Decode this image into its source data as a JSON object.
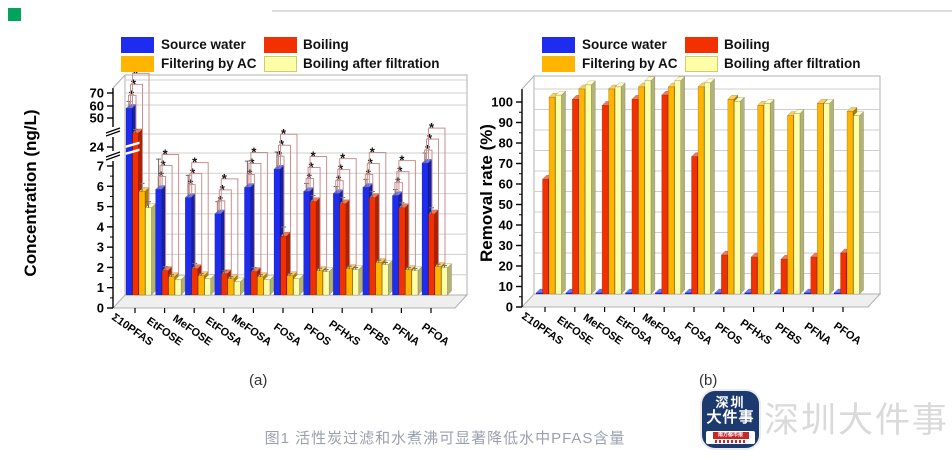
{
  "legend": {
    "items": [
      {
        "label": "Source water",
        "color": "#1e2cf0"
      },
      {
        "label": "Boiling",
        "color": "#f33000"
      },
      {
        "label": "Filtering by AC",
        "color": "#ffb400"
      },
      {
        "label": "Boiling after filtration",
        "color": "#ffffa8"
      }
    ]
  },
  "chart_data": [
    {
      "id": "a",
      "type": "bar",
      "ylabel": "Concentration (ng/L)",
      "categories": [
        "Σ10PFAS",
        "EtFOSE",
        "MeFOSE",
        "EtFOSA",
        "MeFOSA",
        "FOSA",
        "PFOS",
        "PFHxS",
        "PFBS",
        "PFNA",
        "PFOA"
      ],
      "series": [
        {
          "name": "Source water",
          "color": "#1e2cf0",
          "values": [
            47,
            5.2,
            4.8,
            4.0,
            5.3,
            6.2,
            5.1,
            5.0,
            5.3,
            4.9,
            6.5
          ],
          "errors": [
            6,
            1.5,
            1.1,
            0.6,
            1.3,
            1.7,
            0.4,
            0.35,
            0.4,
            0.3,
            0.5
          ]
        },
        {
          "name": "Boiling",
          "color": "#f33000",
          "values": [
            25,
            1.2,
            1.3,
            1.05,
            1.15,
            2.9,
            4.6,
            4.5,
            4.8,
            4.3,
            4.0
          ],
          "errors": [
            3,
            0.2,
            0.25,
            0.15,
            0.2,
            0.45,
            0.3,
            0.3,
            0.3,
            0.25,
            0.3
          ]
        },
        {
          "name": "Filtering by AC",
          "color": "#ffb400",
          "values": [
            5.1,
            0.9,
            0.95,
            0.8,
            0.9,
            0.95,
            1.2,
            1.3,
            1.6,
            1.25,
            1.4
          ],
          "errors": [
            0.4,
            0.1,
            0.1,
            0.1,
            0.1,
            0.1,
            0.12,
            0.12,
            0.12,
            0.1,
            0.12
          ]
        },
        {
          "name": "Boiling after filtration",
          "color": "#ffffa8",
          "values": [
            4.3,
            0.75,
            0.8,
            0.65,
            0.75,
            0.8,
            1.15,
            1.25,
            1.5,
            1.2,
            1.35
          ],
          "errors": [
            0.3,
            0.08,
            0.08,
            0.08,
            0.08,
            0.08,
            0.1,
            0.1,
            0.1,
            0.1,
            0.1
          ]
        }
      ],
      "y_ticks": [
        0,
        1,
        2,
        3,
        4,
        5,
        6,
        7,
        24,
        50,
        60,
        70
      ],
      "axis_breaks": [
        [
          7,
          24
        ],
        [
          24,
          50
        ]
      ],
      "significance": {
        "marker": "*",
        "brackets_per_group": 3
      },
      "grid": true,
      "legend_position": "top"
    },
    {
      "id": "b",
      "type": "bar",
      "ylabel": "Removal rate (%)",
      "categories": [
        "Σ10PFAS",
        "EtFOSE",
        "MeFOSE",
        "EtFOSA",
        "MeFOSA",
        "FOSA",
        "PFOS",
        "PFHxS",
        "PFBS",
        "PFNA",
        "PFOA"
      ],
      "series": [
        {
          "name": "Source water",
          "color": "#1e2cf0",
          "values": [
            0.5,
            0.5,
            0.5,
            0.5,
            0.5,
            0.5,
            0.5,
            0.5,
            0.5,
            0.5,
            0.5
          ],
          "errors": [
            0,
            0,
            0,
            0,
            0,
            0,
            0,
            0,
            0,
            0,
            0
          ]
        },
        {
          "name": "Boiling",
          "color": "#f33000",
          "values": [
            56,
            95,
            92,
            95,
            97,
            67,
            19,
            18,
            17,
            18,
            20
          ],
          "errors": [
            0,
            0,
            0,
            0,
            0,
            0,
            0,
            0,
            0,
            0,
            0
          ]
        },
        {
          "name": "Filtering by AC",
          "color": "#ffb400",
          "values": [
            96,
            100,
            100,
            101,
            101,
            101,
            95,
            92,
            87,
            93,
            89
          ],
          "errors": [
            0,
            0,
            0,
            0,
            0,
            0,
            0,
            0,
            0,
            0,
            0
          ]
        },
        {
          "name": "Boiling after filtration",
          "color": "#ffffa8",
          "values": [
            97,
            102,
            101,
            104,
            104,
            103,
            94,
            93,
            88,
            93,
            87
          ],
          "errors": [
            0,
            0,
            0,
            0,
            0,
            0,
            0,
            0,
            0,
            0,
            0
          ]
        }
      ],
      "y_ticks": [
        0,
        10,
        20,
        30,
        40,
        50,
        60,
        70,
        80,
        90,
        100
      ],
      "ylim": [
        0,
        100
      ],
      "grid": true,
      "legend_position": "top"
    }
  ],
  "subplots": {
    "a": "(a)",
    "b": "(b)"
  },
  "caption": {
    "text": "图1  活性炭过滤和水煮沸可显著降低水中PFAS含量"
  },
  "watermark": {
    "badge_top": "深圳",
    "badge_bottom": "大件事",
    "badge_banner": "南方都市报",
    "text": "深圳大件事"
  },
  "colors": {
    "source_water": "#1e2cf0",
    "boiling": "#f33000",
    "filtering_ac": "#ffb400",
    "boiling_after_filtration": "#ffffa8",
    "significance_bracket": "#c9908f",
    "caption_text": "#9aa1ad",
    "watermark_text": "#dadada",
    "corner_marker": "#00a45f"
  }
}
